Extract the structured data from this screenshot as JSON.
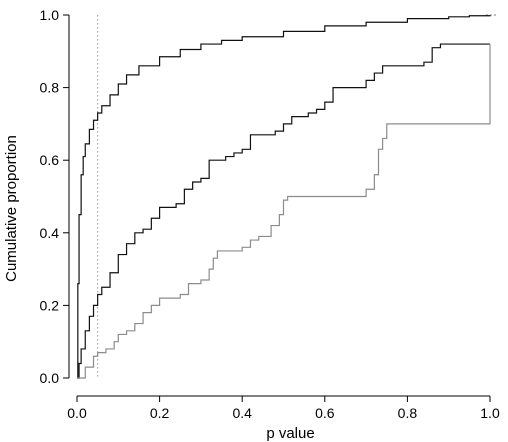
{
  "chart_data": {
    "type": "line",
    "title": "",
    "xlabel": "p value",
    "ylabel": "Cumulative proportion",
    "xlim": [
      0,
      1
    ],
    "ylim": [
      0,
      1
    ],
    "xticks": [
      0.0,
      0.2,
      0.4,
      0.6,
      0.8,
      1.0
    ],
    "xtick_labels": [
      "0.0",
      "0.2",
      "0.4",
      "0.6",
      "0.8",
      "1.0"
    ],
    "yticks": [
      0.0,
      0.2,
      0.4,
      0.6,
      0.8,
      1.0
    ],
    "ytick_labels": [
      "0.0",
      "0.2",
      "0.4",
      "0.6",
      "0.8",
      "1.0"
    ],
    "grid": false,
    "legend": "none",
    "reference_line": {
      "x": 0.05,
      "style": "dotted",
      "color": "#9a9a9a"
    },
    "series": [
      {
        "color": "#111111",
        "style": "solid",
        "x": [
          0.0,
          0.002,
          0.005,
          0.01,
          0.015,
          0.02,
          0.03,
          0.04,
          0.05,
          0.06,
          0.08,
          0.1,
          0.12,
          0.15,
          0.2,
          0.25,
          0.3,
          0.35,
          0.4,
          0.5,
          0.6,
          0.7,
          0.8,
          0.9,
          0.95,
          1.0
        ],
        "y": [
          0.0,
          0.26,
          0.45,
          0.56,
          0.61,
          0.645,
          0.685,
          0.71,
          0.73,
          0.75,
          0.78,
          0.81,
          0.835,
          0.86,
          0.885,
          0.905,
          0.92,
          0.93,
          0.94,
          0.955,
          0.97,
          0.98,
          0.99,
          0.995,
          0.998,
          1.0
        ]
      },
      {
        "color": "#111111",
        "style": "solid",
        "x": [
          0.0,
          0.005,
          0.01,
          0.02,
          0.03,
          0.04,
          0.05,
          0.06,
          0.08,
          0.1,
          0.12,
          0.14,
          0.16,
          0.18,
          0.2,
          0.22,
          0.24,
          0.26,
          0.28,
          0.3,
          0.32,
          0.34,
          0.36,
          0.38,
          0.4,
          0.42,
          0.44,
          0.46,
          0.48,
          0.5,
          0.52,
          0.54,
          0.56,
          0.58,
          0.6,
          0.62,
          0.64,
          0.66,
          0.68,
          0.7,
          0.72,
          0.74,
          0.76,
          0.78,
          0.8,
          0.82,
          0.84,
          0.86,
          0.88,
          0.9,
          0.92,
          0.94,
          0.96,
          0.98,
          1.0
        ],
        "y": [
          0.0,
          0.04,
          0.08,
          0.13,
          0.17,
          0.2,
          0.23,
          0.25,
          0.29,
          0.34,
          0.37,
          0.4,
          0.41,
          0.44,
          0.47,
          0.47,
          0.48,
          0.52,
          0.54,
          0.55,
          0.6,
          0.6,
          0.61,
          0.62,
          0.63,
          0.67,
          0.67,
          0.67,
          0.68,
          0.7,
          0.72,
          0.72,
          0.73,
          0.74,
          0.76,
          0.8,
          0.8,
          0.8,
          0.8,
          0.82,
          0.84,
          0.86,
          0.86,
          0.86,
          0.86,
          0.86,
          0.87,
          0.91,
          0.92,
          0.92,
          0.92,
          0.92,
          0.92,
          0.92,
          0.92
        ]
      },
      {
        "color": "#8c8c8c",
        "style": "solid",
        "x": [
          0.0,
          0.02,
          0.04,
          0.05,
          0.07,
          0.09,
          0.1,
          0.12,
          0.14,
          0.16,
          0.18,
          0.2,
          0.22,
          0.25,
          0.27,
          0.3,
          0.32,
          0.33,
          0.34,
          0.35,
          0.37,
          0.4,
          0.42,
          0.44,
          0.47,
          0.49,
          0.5,
          0.51,
          0.52,
          0.53,
          0.55,
          0.6,
          0.65,
          0.7,
          0.72,
          0.73,
          0.74,
          0.75,
          0.8,
          0.9,
          0.99,
          1.0
        ],
        "y": [
          0.0,
          0.03,
          0.06,
          0.07,
          0.08,
          0.1,
          0.12,
          0.13,
          0.15,
          0.18,
          0.2,
          0.22,
          0.22,
          0.23,
          0.26,
          0.27,
          0.3,
          0.33,
          0.35,
          0.35,
          0.35,
          0.36,
          0.38,
          0.39,
          0.42,
          0.45,
          0.49,
          0.5,
          0.5,
          0.5,
          0.5,
          0.5,
          0.5,
          0.52,
          0.56,
          0.63,
          0.66,
          0.7,
          0.7,
          0.7,
          0.7,
          0.92
        ]
      }
    ]
  }
}
